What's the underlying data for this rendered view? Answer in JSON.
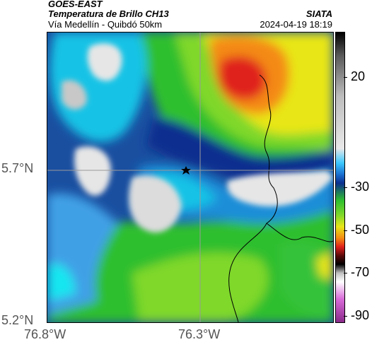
{
  "header": {
    "satellite": "GOES-EAST",
    "product": "Temperatura de Brillo CH13",
    "region": "Vía Medellín - Quibdó 50km",
    "brand": "SIATA",
    "datetime": "2024-04-19 18:19"
  },
  "map": {
    "lat_labels": [
      "5.7°N",
      "5.2°N"
    ],
    "lon_labels": [
      "76.8°W",
      "76.3°W"
    ],
    "marker_icon": "star-icon"
  },
  "colorbar": {
    "labels": [
      "20",
      "-30",
      "-50",
      "-70",
      "-90"
    ]
  },
  "colors": {
    "cold_cloud": "#e6e6e6",
    "deep_blue": "#0b2f8f",
    "cyan": "#12c3e6",
    "green": "#2fbf2f",
    "yellow": "#e8e619",
    "orange": "#f48a12",
    "red": "#e0201c"
  }
}
